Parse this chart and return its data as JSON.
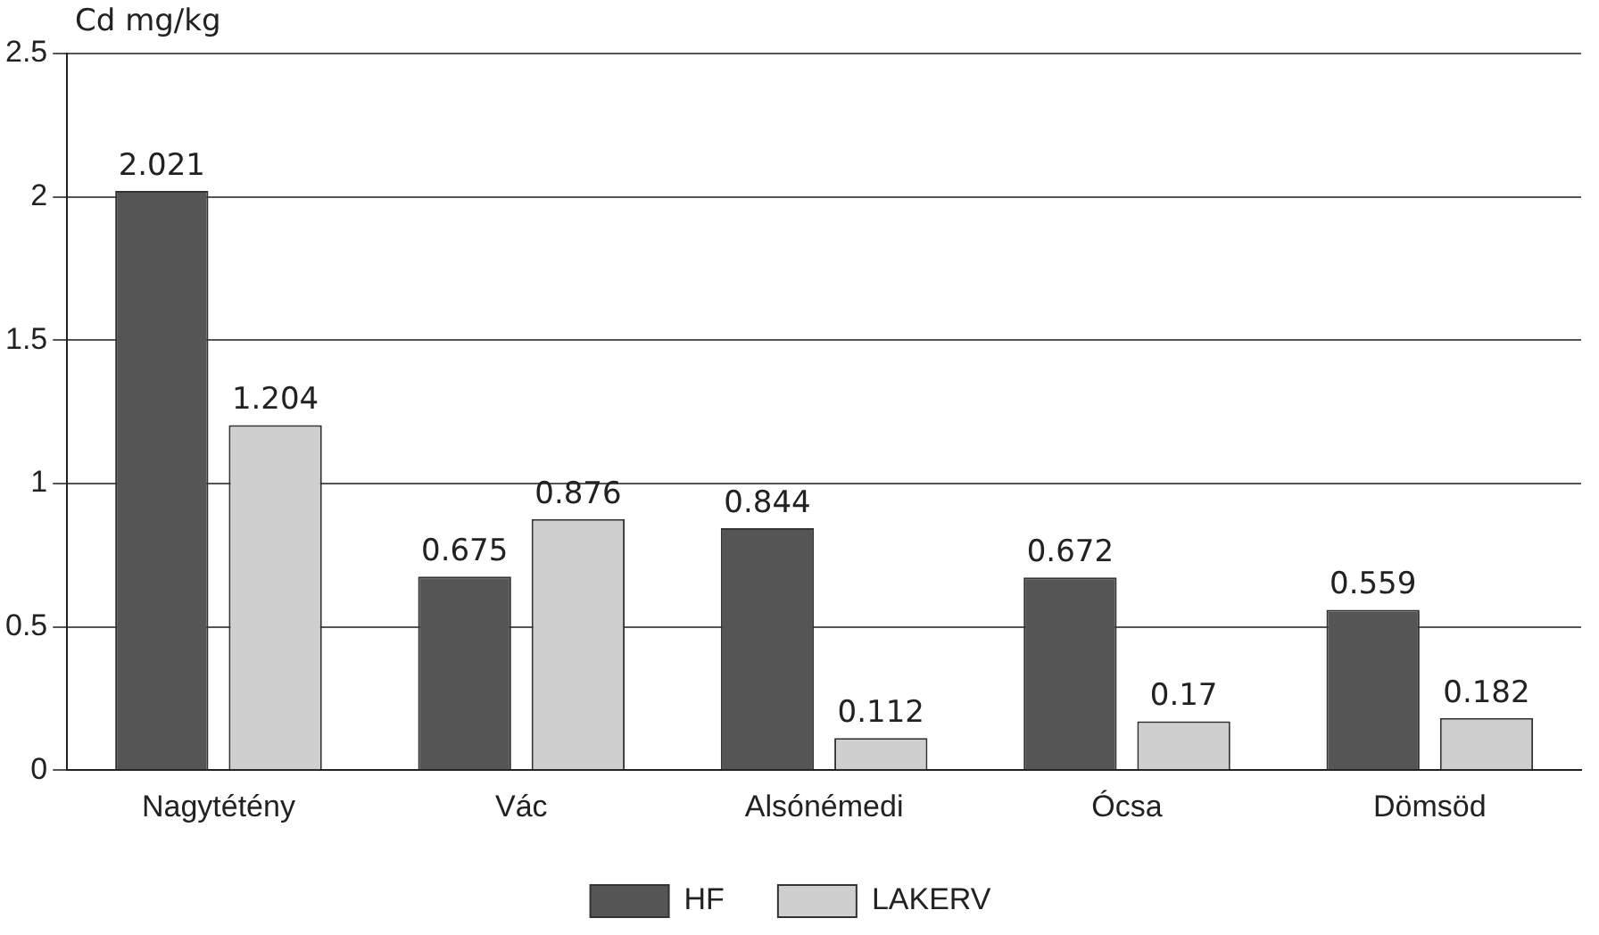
{
  "chart_data": {
    "type": "bar",
    "ylabel": "Cd mg/kg",
    "categories": [
      "Nagytétény",
      "Vác",
      "Alsónémedi",
      "Ócsa",
      "Dömsöd"
    ],
    "series": [
      {
        "name": "HF",
        "color": "#555555",
        "values": [
          2.021,
          0.675,
          0.844,
          0.672,
          0.559
        ]
      },
      {
        "name": "LAKERV",
        "color": "#cfcfcf",
        "values": [
          1.204,
          0.876,
          0.112,
          0.17,
          0.182
        ]
      }
    ],
    "ylim": [
      0,
      2.5
    ],
    "yticks": [
      0,
      0.5,
      1,
      1.5,
      2,
      2.5
    ],
    "grid": "y",
    "legend": "bottom",
    "data_labels": true
  }
}
